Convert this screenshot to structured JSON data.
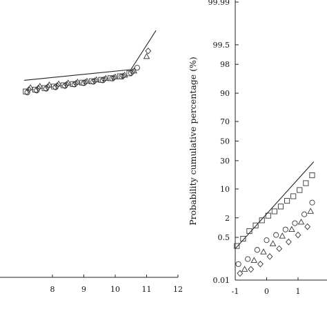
{
  "chart_data": [
    {
      "type": "scatter",
      "title": "",
      "xlabel": "",
      "ylabel": "",
      "xlim": [
        7.1,
        12
      ],
      "x_ticks": [
        8,
        9,
        10,
        11,
        12
      ],
      "x_tick_labels": [
        "8",
        "9",
        "10",
        "11",
        "12"
      ],
      "grid": false,
      "fit_line": {
        "x": [
          7.1,
          10.5,
          11.3
        ],
        "y": [
          -0.55,
          0.6,
          4.8
        ]
      },
      "series": [
        {
          "marker": "circle",
          "x": [
            7.2,
            7.5,
            7.8,
            8.1,
            8.4,
            8.7,
            9.0,
            9.3,
            9.6,
            9.9,
            10.2,
            10.5,
            10.7
          ],
          "y": [
            -1.85,
            -1.65,
            -1.45,
            -1.3,
            -1.15,
            -1.0,
            -0.85,
            -0.7,
            -0.55,
            -0.35,
            -0.15,
            0.25,
            0.8
          ]
        },
        {
          "marker": "triangle",
          "x": [
            7.3,
            7.6,
            7.9,
            8.2,
            8.5,
            8.8,
            9.1,
            9.4,
            9.7,
            10.0,
            10.3,
            10.6,
            11.0
          ],
          "y": [
            -1.35,
            -1.2,
            -1.05,
            -0.95,
            -0.85,
            -0.75,
            -0.65,
            -0.5,
            -0.35,
            -0.2,
            0.0,
            0.45,
            2.0
          ]
        },
        {
          "marker": "diamond",
          "x": [
            7.25,
            7.55,
            7.85,
            8.15,
            8.45,
            8.75,
            9.05,
            9.35,
            9.65,
            9.95,
            10.25,
            10.55,
            11.05
          ],
          "y": [
            -1.55,
            -1.4,
            -1.25,
            -1.12,
            -1.0,
            -0.88,
            -0.75,
            -0.6,
            -0.45,
            -0.3,
            -0.1,
            0.35,
            2.6
          ]
        },
        {
          "marker": "square",
          "x": [
            7.15,
            7.45,
            7.75,
            8.05,
            8.35,
            8.65,
            8.95,
            9.25,
            9.55,
            9.85,
            10.15,
            10.45
          ],
          "y": [
            -1.75,
            -1.55,
            -1.38,
            -1.22,
            -1.08,
            -0.95,
            -0.8,
            -0.65,
            -0.5,
            -0.32,
            -0.12,
            0.2
          ]
        }
      ]
    },
    {
      "type": "scatter",
      "title": "",
      "xlabel": "",
      "ylabel": "Probability cumulative percentage (%)",
      "xlim": [
        -1,
        2.4
      ],
      "x_ticks": [
        -1,
        0,
        1
      ],
      "x_tick_labels": [
        "-1",
        "0",
        "1"
      ],
      "y_scale": "normal-probability",
      "y_ticks": [
        0.01,
        0.5,
        2,
        10,
        30,
        50,
        70,
        90,
        98,
        99.5,
        99.99
      ],
      "y_tick_labels": [
        "0.01",
        "0.5",
        "2",
        "10",
        "30",
        "50",
        "70",
        "90",
        "98",
        "99.5",
        "99.99"
      ],
      "grid": false,
      "fit_line": {
        "x": [
          -1,
          1.5
        ],
        "y": [
          0.2,
          29
        ]
      },
      "series": [
        {
          "marker": "square",
          "x": [
            -0.95,
            -0.75,
            -0.55,
            -0.35,
            -0.15,
            0.05,
            0.25,
            0.45,
            0.65,
            0.85,
            1.05,
            1.25,
            1.45
          ],
          "y": [
            0.25,
            0.45,
            0.8,
            1.2,
            1.7,
            2.3,
            3.0,
            4.0,
            5.5,
            7.0,
            9.5,
            13.0,
            18.0
          ]
        },
        {
          "marker": "circle",
          "x": [
            -0.9,
            -0.6,
            -0.3,
            0.0,
            0.3,
            0.6,
            0.9,
            1.2,
            1.45
          ],
          "y": [
            0.05,
            0.08,
            0.18,
            0.4,
            0.6,
            0.9,
            1.4,
            2.5,
            5.0
          ]
        },
        {
          "marker": "triangle",
          "x": [
            -0.7,
            -0.4,
            -0.1,
            0.2,
            0.5,
            0.8,
            1.1,
            1.4
          ],
          "y": [
            0.03,
            0.07,
            0.15,
            0.3,
            0.55,
            0.9,
            1.5,
            3.0
          ]
        },
        {
          "marker": "diamond",
          "x": [
            -0.85,
            -0.5,
            -0.2,
            0.1,
            0.4,
            0.7,
            1.0,
            1.3
          ],
          "y": [
            0.02,
            0.03,
            0.05,
            0.1,
            0.2,
            0.35,
            0.6,
            1.1
          ]
        }
      ]
    }
  ]
}
